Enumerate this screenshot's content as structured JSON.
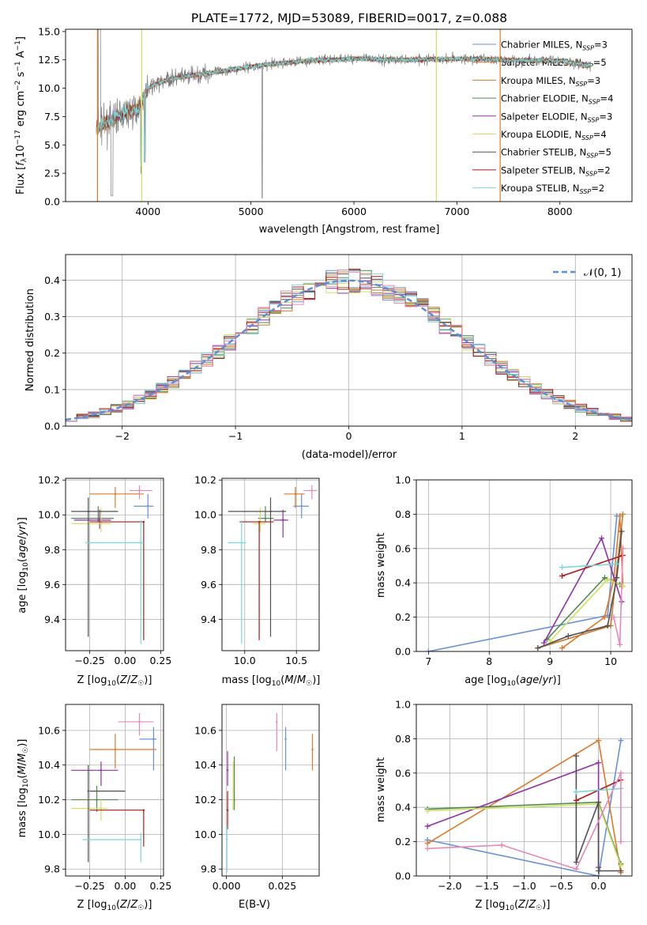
{
  "colors": {
    "chabrier_miles": "#6890d8",
    "salpeter_miles": "#e07828",
    "kroupa_miles": "#c87830",
    "chabrier_elodie": "#508a50",
    "salpeter_elodie": "#9030a8",
    "kroupa_elodie": "#d0e060",
    "chabrier_stelib": "#505050",
    "salpeter_stelib": "#b01818",
    "kroupa_stelib": "#78d8d8",
    "extra_pink": "#e888b8",
    "gaussian": "#5b8fd6",
    "grid": "#b0b0b0"
  },
  "chart_data": [
    {
      "id": "spectrum",
      "type": "line",
      "title": "PLATE=1772, MJD=53089, FIBERID=0017, z=0.088",
      "xlabel": "wavelength [Angstrom, rest frame]",
      "ylabel": "Flux [f_λ 10^-17 erg cm^-2 s^-1 A^-1]",
      "xlim": [
        3200,
        8700
      ],
      "ylim": [
        0,
        15.2
      ],
      "xticks": [
        4000,
        5000,
        6000,
        7000,
        8000
      ],
      "xtick_labels": [
        "4000",
        "5000",
        "6000",
        "7000",
        "8000"
      ],
      "yticks": [
        0,
        2.5,
        5,
        7.5,
        10,
        12.5,
        15
      ],
      "ytick_labels": [
        "0.0",
        "2.5",
        "5.0",
        "7.5",
        "10.0",
        "12.5",
        "15.0"
      ],
      "grid": false,
      "legend": "upper right",
      "series": [
        {
          "name": "Chabrier MILES, N_SSP=3"
        },
        {
          "name": "Salpeter MILES, N_SSP=5"
        },
        {
          "name": "Kroupa MILES, N_SSP=3"
        },
        {
          "name": "Chabrier ELODIE, N_SSP=4"
        },
        {
          "name": "Salpeter ELODIE, N_SSP=3"
        },
        {
          "name": "Kroupa ELODIE, N_SSP=4"
        },
        {
          "name": "Chabrier STELIB, N_SSP=5"
        },
        {
          "name": "Salpeter STELIB, N_SSP=2"
        },
        {
          "name": "Kroupa STELIB, N_SSP=2"
        }
      ],
      "continuum": {
        "x": [
          3500,
          3700,
          3900,
          4000,
          4200,
          4500,
          5000,
          5500,
          6000,
          6500,
          7000,
          7500,
          8000,
          8300
        ],
        "y": [
          6.5,
          7.5,
          8.2,
          10.0,
          10.8,
          11.2,
          11.9,
          12.4,
          12.6,
          12.5,
          12.6,
          12.5,
          12.4,
          12.0
        ]
      }
    },
    {
      "id": "residuals",
      "type": "bar",
      "xlabel": "(data-model)/error",
      "ylabel": "Normed distribution",
      "xlim": [
        -2.5,
        2.5
      ],
      "ylim": [
        0,
        0.47
      ],
      "xticks": [
        -2,
        -1,
        0,
        1,
        2
      ],
      "xtick_labels": [
        "−2",
        "−1",
        "0",
        "1",
        "2"
      ],
      "yticks": [
        0,
        0.1,
        0.2,
        0.3,
        0.4
      ],
      "ytick_labels": [
        "0.0",
        "0.1",
        "0.2",
        "0.3",
        "0.4"
      ],
      "grid": true,
      "legend": "upper right",
      "gaussian_label": "𝒩(0, 1)"
    },
    {
      "id": "age_vs_Z",
      "type": "scatter",
      "xlabel": "Z [log10(Z/Z☉)]",
      "ylabel": "age [log10(age/yr)]",
      "xlim": [
        -0.42,
        0.27
      ],
      "ylim": [
        9.22,
        10.21
      ],
      "xticks": [
        -0.25,
        0,
        0.25
      ],
      "xtick_labels": [
        "−0.25",
        "0.00",
        "0.25"
      ],
      "yticks": [
        9.4,
        9.6,
        9.8,
        10.0,
        10.2
      ],
      "ytick_labels": [
        "9.4",
        "9.6",
        "9.8",
        "10.0",
        "10.2"
      ],
      "grid": true,
      "points": [
        {
          "c": "chabrier_miles",
          "x": 0.16,
          "y": 10.05,
          "xl": 0.06,
          "xh": 0.2,
          "yl": 9.98,
          "yh": 10.12
        },
        {
          "c": "salpeter_miles",
          "x": -0.07,
          "y": 10.12,
          "xl": -0.25,
          "xh": 0.13,
          "yl": 10.04,
          "yh": 10.16
        },
        {
          "c": "extra_pink",
          "x": 0.1,
          "y": 10.14,
          "xl": 0.03,
          "xh": 0.19,
          "yl": 10.09,
          "yh": 10.17
        },
        {
          "c": "chabrier_elodie",
          "x": -0.19,
          "y": 9.98,
          "xl": -0.38,
          "xh": -0.08,
          "yl": 9.96,
          "yh": 10.05
        },
        {
          "c": "salpeter_elodie",
          "x": -0.18,
          "y": 9.97,
          "xl": -0.36,
          "xh": -0.1,
          "yl": 9.92,
          "yh": 10.03
        },
        {
          "c": "kroupa_elodie",
          "x": -0.17,
          "y": 9.95,
          "xl": -0.38,
          "xh": -0.1,
          "yl": 9.9,
          "yh": 10.04
        },
        {
          "c": "chabrier_stelib",
          "x": -0.26,
          "y": 10.02,
          "xl": -0.38,
          "xh": -0.05,
          "yl": 9.3,
          "yh": 10.1
        },
        {
          "c": "salpeter_stelib",
          "x": 0.13,
          "y": 9.96,
          "xl": -0.25,
          "xh": 0.13,
          "yl": 9.28,
          "yh": 9.96
        },
        {
          "c": "kroupa_stelib",
          "x": 0.11,
          "y": 9.84,
          "xl": -0.28,
          "xh": 0.13,
          "yl": 9.26,
          "yh": 9.97
        }
      ]
    },
    {
      "id": "age_vs_mass",
      "type": "scatter",
      "xlabel": "mass [log10(M/M☉)]",
      "ylabel": "",
      "xlim": [
        9.78,
        10.72
      ],
      "ylim": [
        9.22,
        10.21
      ],
      "xticks": [
        10.0,
        10.5
      ],
      "xtick_labels": [
        "10.0",
        "10.5"
      ],
      "yticks": [
        9.4,
        9.6,
        9.8,
        10.0,
        10.2
      ],
      "ytick_labels": [
        "9.4",
        "9.6",
        "9.8",
        "10.0",
        "10.2"
      ],
      "grid": true,
      "points": [
        {
          "c": "chabrier_miles",
          "x": 10.55,
          "y": 10.05,
          "xl": 10.47,
          "xh": 10.62,
          "yl": 9.98,
          "yh": 10.12
        },
        {
          "c": "salpeter_miles",
          "x": 10.49,
          "y": 10.12,
          "xl": 10.38,
          "xh": 10.58,
          "yl": 10.04,
          "yh": 10.16
        },
        {
          "c": "extra_pink",
          "x": 10.65,
          "y": 10.14,
          "xl": 10.57,
          "xh": 10.7,
          "yl": 10.09,
          "yh": 10.17
        },
        {
          "c": "chabrier_elodie",
          "x": 10.2,
          "y": 9.98,
          "xl": 10.13,
          "xh": 10.28,
          "yl": 9.96,
          "yh": 10.05
        },
        {
          "c": "salpeter_elodie",
          "x": 10.37,
          "y": 9.97,
          "xl": 10.28,
          "xh": 10.42,
          "yl": 9.87,
          "yh": 10.03
        },
        {
          "c": "kroupa_elodie",
          "x": 10.15,
          "y": 9.95,
          "xl": 10.08,
          "xh": 10.2,
          "yl": 9.9,
          "yh": 10.04
        },
        {
          "c": "chabrier_stelib",
          "x": 10.25,
          "y": 10.02,
          "xl": 9.84,
          "xh": 10.4,
          "yl": 9.3,
          "yh": 10.1
        },
        {
          "c": "salpeter_stelib",
          "x": 10.14,
          "y": 9.96,
          "xl": 9.95,
          "xh": 10.28,
          "yl": 9.28,
          "yh": 9.96
        },
        {
          "c": "kroupa_stelib",
          "x": 9.97,
          "y": 9.84,
          "xl": 9.84,
          "xh": 10.01,
          "yl": 9.26,
          "yh": 9.97
        }
      ]
    },
    {
      "id": "weight_vs_age",
      "type": "line",
      "xlabel": "age [log10(age/yr)]",
      "ylabel": "mass weight",
      "xlim": [
        6.8,
        10.35
      ],
      "ylim": [
        0,
        1.0
      ],
      "xticks": [
        7,
        8,
        9,
        10
      ],
      "xtick_labels": [
        "7",
        "8",
        "9",
        "10"
      ],
      "yticks": [
        0,
        0.2,
        0.4,
        0.6,
        0.8,
        1.0
      ],
      "ytick_labels": [
        "0.0",
        "0.2",
        "0.4",
        "0.6",
        "0.8",
        "1.0"
      ],
      "grid": true,
      "series": [
        {
          "c": "chabrier_miles",
          "x": [
            7.0,
            9.95,
            10.1
          ],
          "y": [
            0.0,
            0.21,
            0.79
          ]
        },
        {
          "c": "salpeter_miles",
          "x": [
            9.2,
            9.9,
            10.05,
            10.15,
            10.2
          ],
          "y": [
            0.02,
            0.2,
            0.42,
            0.79,
            0.38
          ]
        },
        {
          "c": "kroupa_miles",
          "x": [
            8.8,
            10.0,
            10.2
          ],
          "y": [
            0.02,
            0.15,
            0.8
          ]
        },
        {
          "c": "chabrier_elodie",
          "x": [
            8.95,
            9.9,
            10.15
          ],
          "y": [
            0.07,
            0.43,
            0.39
          ]
        },
        {
          "c": "salpeter_elodie",
          "x": [
            8.9,
            9.85,
            10.18
          ],
          "y": [
            0.05,
            0.66,
            0.29
          ]
        },
        {
          "c": "kroupa_elodie",
          "x": [
            9.0,
            9.95,
            10.2
          ],
          "y": [
            0.06,
            0.42,
            0.38
          ]
        },
        {
          "c": "chabrier_stelib",
          "x": [
            8.8,
            9.3,
            9.95,
            10.1,
            10.18
          ],
          "y": [
            0.02,
            0.09,
            0.15,
            0.43,
            0.7
          ]
        },
        {
          "c": "salpeter_stelib",
          "x": [
            9.2,
            10.2
          ],
          "y": [
            0.44,
            0.56
          ]
        },
        {
          "c": "kroupa_stelib",
          "x": [
            9.2,
            10.1
          ],
          "y": [
            0.49,
            0.51
          ]
        },
        {
          "c": "extra_pink",
          "x": [
            10.05,
            10.15,
            10.2
          ],
          "y": [
            0.2,
            0.04,
            0.6
          ]
        }
      ]
    },
    {
      "id": "mass_vs_Z",
      "type": "scatter",
      "xlabel": "Z [log10(Z/Z☉)]",
      "ylabel": "mass [log10(M/M☉)]",
      "xlim": [
        -0.42,
        0.27
      ],
      "ylim": [
        9.76,
        10.75
      ],
      "xticks": [
        -0.25,
        0,
        0.25
      ],
      "xtick_labels": [
        "−0.25",
        "0.00",
        "0.25"
      ],
      "yticks": [
        9.8,
        10.0,
        10.2,
        10.4,
        10.6
      ],
      "ytick_labels": [
        "9.8",
        "10.0",
        "10.2",
        "10.4",
        "10.6"
      ],
      "grid": true,
      "points": [
        {
          "c": "chabrier_miles",
          "x": 0.2,
          "y": 10.55,
          "xl": 0.1,
          "xh": 0.22,
          "yl": 10.37,
          "yh": 10.62
        },
        {
          "c": "salpeter_miles",
          "x": -0.07,
          "y": 10.49,
          "xl": -0.25,
          "xh": 0.22,
          "yl": 10.38,
          "yh": 10.58
        },
        {
          "c": "extra_pink",
          "x": 0.1,
          "y": 10.65,
          "xl": -0.05,
          "xh": 0.2,
          "yl": 10.57,
          "yh": 10.7
        },
        {
          "c": "chabrier_elodie",
          "x": -0.2,
          "y": 10.2,
          "xl": -0.38,
          "xh": -0.05,
          "yl": 10.13,
          "yh": 10.28
        },
        {
          "c": "salpeter_elodie",
          "x": -0.17,
          "y": 10.37,
          "xl": -0.38,
          "xh": -0.05,
          "yl": 10.28,
          "yh": 10.42
        },
        {
          "c": "kroupa_elodie",
          "x": -0.17,
          "y": 10.15,
          "xl": -0.38,
          "xh": -0.12,
          "yl": 10.08,
          "yh": 10.2
        },
        {
          "c": "chabrier_stelib",
          "x": -0.26,
          "y": 10.25,
          "xl": -0.25,
          "xh": 0.0,
          "yl": 9.84,
          "yh": 10.4
        },
        {
          "c": "salpeter_stelib",
          "x": 0.13,
          "y": 10.14,
          "xl": -0.25,
          "xh": 0.13,
          "yl": 9.93,
          "yh": 10.14
        },
        {
          "c": "kroupa_stelib",
          "x": 0.11,
          "y": 9.97,
          "xl": -0.3,
          "xh": 0.11,
          "yl": 9.84,
          "yh": 10.01
        }
      ]
    },
    {
      "id": "mass_vs_ebv",
      "type": "scatter",
      "xlabel": "E(B-V)",
      "ylabel": "",
      "xlim": [
        -0.002,
        0.0415
      ],
      "ylim": [
        9.76,
        10.75
      ],
      "xticks": [
        0.0,
        0.025
      ],
      "xtick_labels": [
        "0.000",
        "0.025"
      ],
      "yticks": [
        9.8,
        10.0,
        10.2,
        10.4,
        10.6
      ],
      "ytick_labels": [
        "9.8",
        "10.0",
        "10.2",
        "10.4",
        "10.6"
      ],
      "grid": true,
      "points": [
        {
          "c": "chabrier_miles",
          "x": 0.0265,
          "y": 10.55,
          "yl": 10.37,
          "yh": 10.62
        },
        {
          "c": "salpeter_miles",
          "x": 0.0385,
          "y": 10.49,
          "yl": 10.37,
          "yh": 10.58
        },
        {
          "c": "extra_pink",
          "x": 0.0225,
          "y": 10.65,
          "yl": 10.48,
          "yh": 10.7
        },
        {
          "c": "chabrier_elodie",
          "x": 0.0035,
          "y": 10.2,
          "yl": 10.14,
          "yh": 10.45
        },
        {
          "c": "salpeter_elodie",
          "x": 0.0005,
          "y": 10.37,
          "yl": 10.28,
          "yh": 10.48
        },
        {
          "c": "kroupa_elodie",
          "x": 0.003,
          "y": 10.15,
          "yl": 10.14,
          "yh": 10.42
        },
        {
          "c": "salpeter_stelib",
          "x": 0.0005,
          "y": 10.14,
          "yl": 10.03,
          "yh": 10.25
        },
        {
          "c": "kroupa_stelib",
          "x": 0.0002,
          "y": 9.97,
          "yl": 9.78,
          "yh": 10.05
        }
      ]
    },
    {
      "id": "weight_vs_Z",
      "type": "line",
      "xlabel": "Z [log10(Z/Z☉)]",
      "ylabel": "mass weight",
      "xlim": [
        -2.45,
        0.45
      ],
      "ylim": [
        0,
        1.0
      ],
      "xticks": [
        -2.0,
        -1.5,
        -1.0,
        -0.5,
        0.0
      ],
      "xtick_labels": [
        "−2.0",
        "−1.5",
        "−1.0",
        "−0.5",
        "0.0"
      ],
      "yticks": [
        0,
        0.2,
        0.4,
        0.6,
        0.8,
        1.0
      ],
      "ytick_labels": [
        "0.0",
        "0.2",
        "0.4",
        "0.6",
        "0.8",
        "1.0"
      ],
      "grid": true,
      "series": [
        {
          "c": "chabrier_miles",
          "x": [
            -2.3,
            0.0,
            0.3
          ],
          "y": [
            0.21,
            0.0,
            0.79
          ]
        },
        {
          "c": "salpeter_miles",
          "x": [
            -2.3,
            0.0,
            0.3
          ],
          "y": [
            0.19,
            0.79,
            0.02
          ]
        },
        {
          "c": "chabrier_elodie",
          "x": [
            -2.3,
            0.0,
            0.3
          ],
          "y": [
            0.39,
            0.43,
            0.07
          ]
        },
        {
          "c": "salpeter_elodie",
          "x": [
            -2.3,
            0.0,
            0.0
          ],
          "y": [
            0.29,
            0.66,
            0.05
          ]
        },
        {
          "c": "kroupa_elodie",
          "x": [
            -2.3,
            0.0,
            0.3
          ],
          "y": [
            0.38,
            0.42,
            0.06
          ]
        },
        {
          "c": "chabrier_stelib",
          "x": [
            -0.3,
            -0.3,
            0.0,
            0.0,
            0.3
          ],
          "y": [
            0.7,
            0.08,
            0.43,
            0.03,
            0.03
          ]
        },
        {
          "c": "salpeter_stelib",
          "x": [
            -0.3,
            0.3
          ],
          "y": [
            0.44,
            0.56
          ]
        },
        {
          "c": "kroupa_stelib",
          "x": [
            -0.3,
            0.3
          ],
          "y": [
            0.49,
            0.51
          ]
        },
        {
          "c": "extra_pink",
          "x": [
            -2.3,
            -1.3,
            -0.3,
            0.3,
            0.3
          ],
          "y": [
            0.16,
            0.18,
            0.04,
            0.6,
            0.2
          ]
        }
      ]
    }
  ]
}
